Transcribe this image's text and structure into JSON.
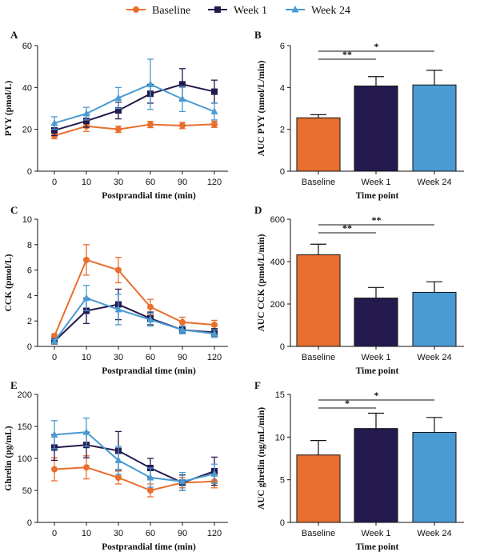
{
  "colors": {
    "Baseline": "#e86f2e",
    "Week 1": "#241a4d",
    "Week 24": "#4a9bd3"
  },
  "legend": [
    "Baseline",
    "Week 1",
    "Week 24"
  ],
  "chart_data": [
    {
      "panel": "A",
      "type": "line",
      "xlabel": "Postprandial time (min)",
      "ylabel": "PYY (pmol/L)",
      "x": [
        0,
        10,
        30,
        60,
        90,
        120
      ],
      "ylim": [
        0,
        60
      ],
      "yticks": [
        0,
        20,
        40,
        60
      ],
      "series": [
        {
          "name": "Baseline",
          "values": [
            17,
            21.5,
            20,
            22.3,
            21.8,
            22.4
          ],
          "err": [
            1.5,
            2.5,
            1.5,
            1.5,
            1.5,
            1.5
          ]
        },
        {
          "name": "Week 1",
          "values": [
            19.5,
            24,
            29,
            37,
            41.5,
            38
          ],
          "err": [
            2.5,
            3,
            4,
            4.5,
            7.5,
            5.5
          ]
        },
        {
          "name": "Week 24",
          "values": [
            23,
            27.5,
            35,
            41.5,
            34.5,
            28.5
          ],
          "err": [
            3,
            3,
            5,
            12,
            6,
            4
          ]
        }
      ]
    },
    {
      "panel": "B",
      "type": "bar",
      "xlabel": "Time point",
      "ylabel": "AUC PYY (nmol/L/min)",
      "categories": [
        "Baseline",
        "Week 1",
        "Week 24"
      ],
      "ylim": [
        0,
        6
      ],
      "yticks": [
        0,
        2,
        4,
        6
      ],
      "values": [
        2.55,
        4.07,
        4.12
      ],
      "err": [
        0.15,
        0.45,
        0.7
      ],
      "annotations": [
        {
          "from": "Baseline",
          "to": "Week 1",
          "label": "**"
        },
        {
          "from": "Baseline",
          "to": "Week 24",
          "label": "*"
        }
      ]
    },
    {
      "panel": "C",
      "type": "line",
      "xlabel": "Postprandial time (min)",
      "ylabel": "CCK (pmol/L)",
      "x": [
        0,
        10,
        30,
        60,
        90,
        120
      ],
      "ylim": [
        0,
        10
      ],
      "yticks": [
        0,
        2,
        4,
        6,
        8,
        10
      ],
      "series": [
        {
          "name": "Baseline",
          "values": [
            0.8,
            6.8,
            6.0,
            3.1,
            1.9,
            1.7
          ],
          "err": [
            0.2,
            1.2,
            1.0,
            0.6,
            0.4,
            0.35
          ]
        },
        {
          "name": "Week 1",
          "values": [
            0.4,
            2.8,
            3.3,
            2.2,
            1.3,
            1.1
          ],
          "err": [
            0.15,
            1.0,
            1.2,
            0.5,
            0.3,
            0.3
          ]
        },
        {
          "name": "Week 24",
          "values": [
            0.4,
            3.8,
            2.9,
            2.1,
            1.3,
            1.0
          ],
          "err": [
            0.15,
            1.0,
            1.2,
            0.5,
            0.3,
            0.3
          ]
        }
      ]
    },
    {
      "panel": "D",
      "type": "bar",
      "xlabel": "Time point",
      "ylabel": "AUC CCK (pmol/L/min)",
      "categories": [
        "Baseline",
        "Week 1",
        "Week 24"
      ],
      "ylim": [
        0,
        600
      ],
      "yticks": [
        0,
        200,
        400,
        600
      ],
      "values": [
        432,
        228,
        255
      ],
      "err": [
        50,
        50,
        50
      ],
      "annotations": [
        {
          "from": "Baseline",
          "to": "Week 1",
          "label": "**"
        },
        {
          "from": "Baseline",
          "to": "Week 24",
          "label": "**"
        }
      ]
    },
    {
      "panel": "E",
      "type": "line",
      "xlabel": "Postprandial time (min)",
      "ylabel": "Ghrelin (pg/mL)",
      "x": [
        0,
        10,
        30,
        60,
        90,
        120
      ],
      "ylim": [
        0,
        200
      ],
      "yticks": [
        0,
        50,
        100,
        150,
        200
      ],
      "series": [
        {
          "name": "Baseline",
          "values": [
            83,
            86,
            70,
            50,
            62,
            64
          ],
          "err": [
            18,
            18,
            10,
            10,
            8,
            10
          ]
        },
        {
          "name": "Week 1",
          "values": [
            117,
            121,
            112,
            85,
            62,
            80
          ],
          "err": [
            20,
            20,
            30,
            15,
            12,
            22
          ]
        },
        {
          "name": "Week 24",
          "values": [
            137,
            141,
            97,
            70,
            64,
            76
          ],
          "err": [
            22,
            22,
            22,
            15,
            14,
            15
          ]
        }
      ]
    },
    {
      "panel": "F",
      "type": "bar",
      "xlabel": "Time point",
      "ylabel": "AUC ghrelin (ng/mL/min)",
      "categories": [
        "Baseline",
        "Week 1",
        "Week 24"
      ],
      "ylim": [
        0,
        15
      ],
      "yticks": [
        0,
        5,
        10,
        15
      ],
      "values": [
        7.9,
        11.0,
        10.55
      ],
      "err": [
        1.7,
        1.8,
        1.75
      ],
      "annotations": [
        {
          "from": "Baseline",
          "to": "Week 1",
          "label": "*"
        },
        {
          "from": "Baseline",
          "to": "Week 24",
          "label": "*"
        }
      ]
    }
  ]
}
